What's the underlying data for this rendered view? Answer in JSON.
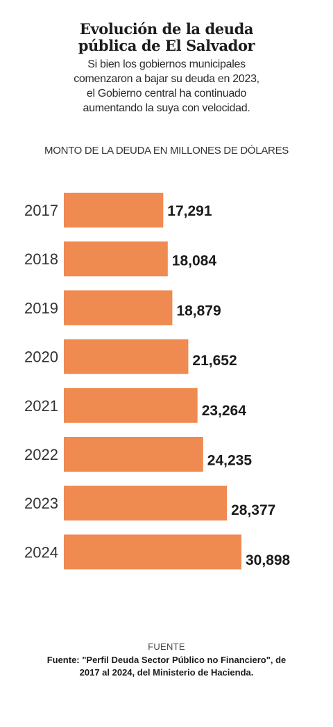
{
  "title_lines": [
    "Evolución de la deuda",
    "pública de El Salvador"
  ],
  "subtitle_lines": [
    "Si bien los gobiernos municipales",
    "comenzaron a bajar su deuda en 2023,",
    "el Gobierno central ha continuado",
    "aumentando la suya con velocidad."
  ],
  "units_label": "MONTO DE LA DEUDA EN MILLONES DE DÓLARES",
  "source_kicker": "FUENTE",
  "source_lines": [
    "Fuente: \"Perfil Deuda Sector Público no Financiero\", de",
    "2017 al 2024, del Ministerio de Hacienda."
  ],
  "colors": {
    "bar": "#EF8A50",
    "text": "#1a1a1a"
  },
  "chart_data": {
    "type": "bar",
    "orientation": "horizontal",
    "categories": [
      "2017",
      "2018",
      "2019",
      "2020",
      "2021",
      "2022",
      "2023",
      "2024"
    ],
    "values": [
      17291,
      18084,
      18879,
      21652,
      23264,
      24235,
      28377,
      30898
    ],
    "value_labels": [
      "17,291",
      "18,084",
      "18,879",
      "21,652",
      "23,264",
      "24,235",
      "28,377",
      "30,898"
    ],
    "title": "",
    "xlabel": "",
    "ylabel": "",
    "grid": false
  }
}
